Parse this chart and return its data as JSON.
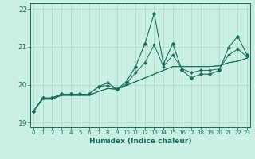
{
  "xlabel": "Humidex (Indice chaleur)",
  "bg_color": "#caf0e4",
  "grid_color": "#b0d8cc",
  "line_color": "#1a6b5a",
  "x": [
    0,
    1,
    2,
    3,
    4,
    5,
    6,
    7,
    8,
    9,
    10,
    11,
    12,
    13,
    14,
    15,
    16,
    17,
    18,
    19,
    20,
    21,
    22,
    23
  ],
  "line1": [
    19.3,
    19.65,
    19.65,
    19.75,
    19.75,
    19.75,
    19.75,
    19.95,
    20.05,
    19.88,
    20.08,
    20.48,
    21.08,
    21.88,
    20.55,
    21.08,
    20.38,
    20.18,
    20.28,
    20.28,
    20.38,
    20.98,
    21.28,
    20.78
  ],
  "line2": [
    19.3,
    19.62,
    19.62,
    19.72,
    19.72,
    19.72,
    19.72,
    19.82,
    19.9,
    19.88,
    19.98,
    20.08,
    20.18,
    20.28,
    20.38,
    20.48,
    20.48,
    20.48,
    20.48,
    20.48,
    20.5,
    20.58,
    20.62,
    20.7
  ],
  "line3": [
    19.3,
    19.62,
    19.62,
    19.72,
    19.72,
    19.72,
    19.72,
    19.82,
    19.9,
    19.88,
    19.98,
    20.08,
    20.18,
    20.28,
    20.38,
    20.48,
    20.48,
    20.48,
    20.48,
    20.48,
    20.5,
    20.58,
    20.62,
    20.7
  ],
  "line4": [
    19.3,
    19.65,
    19.65,
    19.75,
    19.75,
    19.75,
    19.75,
    19.95,
    19.98,
    19.88,
    20.02,
    20.32,
    20.58,
    21.05,
    20.48,
    20.78,
    20.42,
    20.32,
    20.38,
    20.38,
    20.42,
    20.78,
    20.94,
    20.74
  ],
  "ylim": [
    18.88,
    22.15
  ],
  "yticks": [
    19,
    20,
    21,
    22
  ],
  "xticks": [
    0,
    1,
    2,
    3,
    4,
    5,
    6,
    7,
    8,
    9,
    10,
    11,
    12,
    13,
    14,
    15,
    16,
    17,
    18,
    19,
    20,
    21,
    22,
    23
  ]
}
